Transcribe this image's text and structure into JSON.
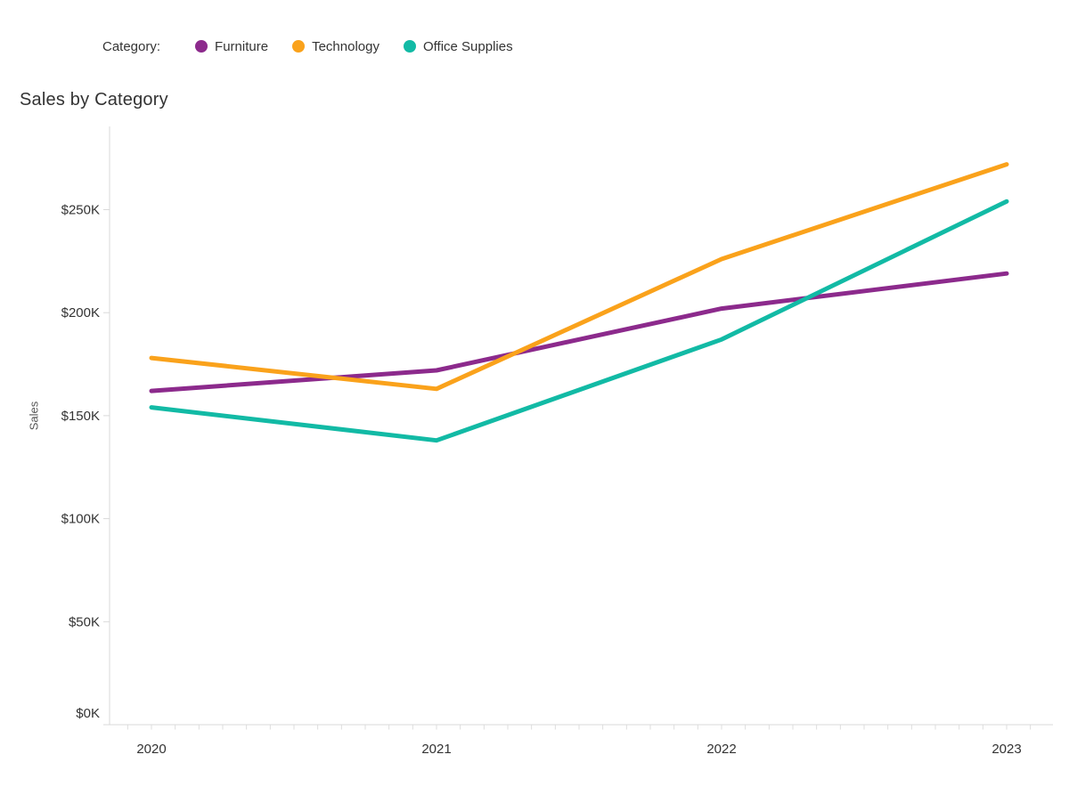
{
  "title": "Sales by Category",
  "legend_title": "Category:",
  "chart_data": {
    "type": "line",
    "title": "Sales by Category",
    "x_categories": [
      "2020",
      "2021",
      "2022",
      "2023"
    ],
    "series": [
      {
        "name": "Furniture",
        "color": "#8C2A8C",
        "values": [
          162,
          172,
          202,
          219
        ]
      },
      {
        "name": "Technology",
        "color": "#FAA21B",
        "values": [
          178,
          163,
          226,
          272
        ]
      },
      {
        "name": "Office Supplies",
        "color": "#12BAA5",
        "values": [
          154,
          138,
          187,
          254
        ]
      }
    ],
    "xlabel": "",
    "ylabel": "Sales",
    "values_in": "$K",
    "y_ticks": [
      {
        "label": "$0K",
        "value": 0
      },
      {
        "label": "$50K",
        "value": 50
      },
      {
        "label": "$100K",
        "value": 100
      },
      {
        "label": "$150K",
        "value": 150
      },
      {
        "label": "$200K",
        "value": 200
      },
      {
        "label": "$250K",
        "value": 250
      }
    ],
    "ylim": [
      0,
      290
    ],
    "grid": false,
    "legend_position": "top",
    "axis_color": "#D9D9D9",
    "tick_label_color": "#333333"
  }
}
